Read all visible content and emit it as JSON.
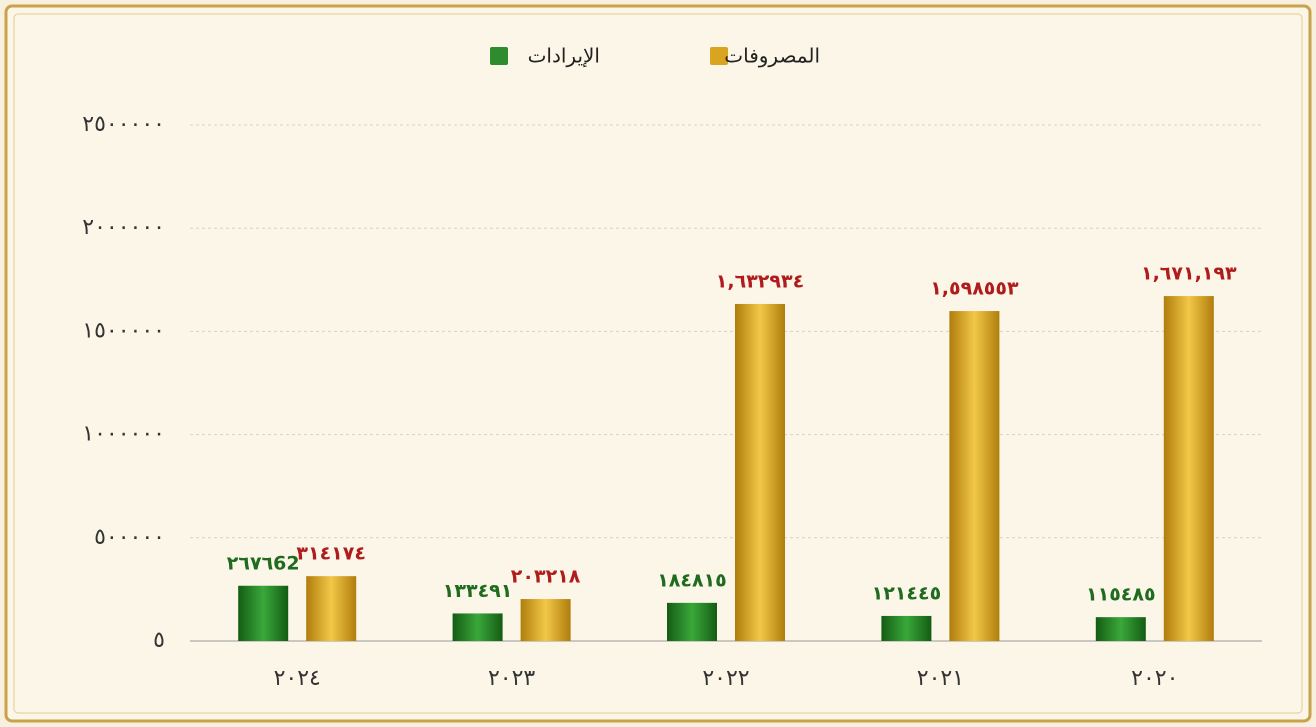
{
  "chart_data": {
    "type": "bar",
    "categories": [
      "٢٠٢٤",
      "٢٠٢٣",
      "٢٠٢٢",
      "٢٠٢١",
      "٢٠٢٠"
    ],
    "series": [
      {
        "name": "الإيرادات",
        "color": "#2e8b2e",
        "label_color": "#1f6b1f",
        "values": [
          267662,
          133491,
          184815,
          121445,
          115485
        ],
        "value_labels": [
          "٢٦٧٦62",
          "١٣٣٤٩١",
          "١٨٤٨١٥",
          "١٢١٤٤٥",
          "١١٥٤٨٥"
        ]
      },
      {
        "name": "المصروفات",
        "color": "#d9a520",
        "label_color": "#b01c1c",
        "values": [
          314174,
          203218,
          1632934,
          1598553,
          1671193
        ],
        "value_labels": [
          "٣١٤١٧٤",
          "٢٠٣٢١٨",
          "١,٦٣٢٩٣٤",
          "١,٥٩٨٥٥٣",
          "١,٦٧١,١٩٣"
        ]
      }
    ],
    "ylim": [
      0,
      2500000
    ],
    "yticks": [
      {
        "value": 5,
        "label": "٥"
      },
      {
        "value": 500000,
        "label": "٥٠٠٠٠٠"
      },
      {
        "value": 1000000,
        "label": "١٠٠٠٠٠٠"
      },
      {
        "value": 1500000,
        "label": "١٥٠٠٠٠٠"
      },
      {
        "value": 2000000,
        "label": "٢٠٠٠٠٠٠"
      },
      {
        "value": 2500000,
        "label": "٢٥٠٠٠٠٠"
      }
    ],
    "grid": true
  }
}
